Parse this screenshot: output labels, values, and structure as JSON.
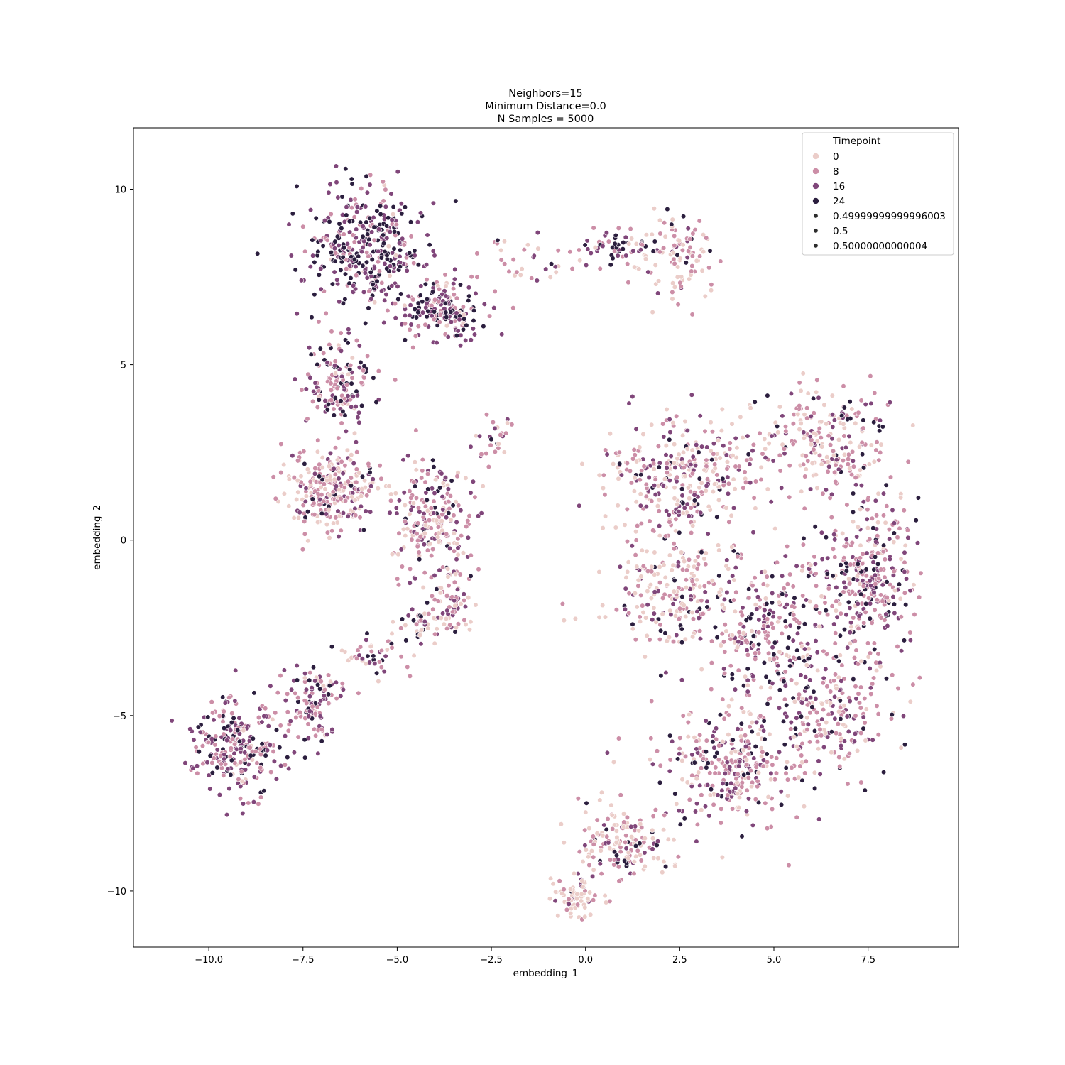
{
  "chart_data": {
    "type": "scatter",
    "title_lines": [
      "Neighbors=15",
      "Minimum Distance=0.0",
      "N Samples = 5000"
    ],
    "xlabel": "embedding_1",
    "ylabel": "embedding_2",
    "xlim": [
      -12,
      9.9
    ],
    "ylim": [
      -11.6,
      11.75
    ],
    "xticks": [
      -10,
      -7.5,
      -5,
      -2.5,
      0,
      2.5,
      5,
      7.5
    ],
    "xtick_labels": [
      "−10.0",
      "−7.5",
      "−5.0",
      "−2.5",
      "0.0",
      "2.5",
      "5.0",
      "7.5"
    ],
    "yticks": [
      10,
      5,
      0,
      -5,
      -10
    ],
    "ytick_labels": [
      "10",
      "5",
      "0",
      "−5",
      "−10"
    ],
    "grid": false,
    "legend": {
      "placement": "top-right",
      "title": "Timepoint",
      "hue_entries": [
        {
          "label": "0",
          "color": "#ebcdc9"
        },
        {
          "label": "8",
          "color": "#cc8ea7"
        },
        {
          "label": "16",
          "color": "#80467a"
        },
        {
          "label": "24",
          "color": "#2b1e3e"
        }
      ],
      "size_entries": [
        {
          "label": "0.49999999999996003",
          "color": "#2d2d2d"
        },
        {
          "label": "0.5",
          "color": "#2d2d2d"
        },
        {
          "label": "0.50000000000004",
          "color": "#2d2d2d"
        }
      ]
    },
    "series": [
      {
        "name": "0",
        "color": "#ebcdc9"
      },
      {
        "name": "8",
        "color": "#cc8ea7"
      },
      {
        "name": "16",
        "color": "#80467a"
      },
      {
        "name": "24",
        "color": "#2b1e3e"
      }
    ],
    "clusters": [
      {
        "center": [
          -5.8,
          8.4
        ],
        "spread": [
          1.4,
          1.5
        ],
        "weight": 380,
        "mix": [
          0.04,
          0.22,
          0.4,
          0.34
        ]
      },
      {
        "center": [
          -3.8,
          6.6
        ],
        "spread": [
          0.9,
          0.8
        ],
        "weight": 170,
        "mix": [
          0.05,
          0.25,
          0.4,
          0.3
        ]
      },
      {
        "center": [
          -6.6,
          4.5
        ],
        "spread": [
          0.8,
          1.4
        ],
        "weight": 150,
        "mix": [
          0.1,
          0.32,
          0.38,
          0.2
        ]
      },
      {
        "center": [
          -6.8,
          1.4
        ],
        "spread": [
          1.0,
          0.9
        ],
        "weight": 260,
        "mix": [
          0.34,
          0.4,
          0.2,
          0.06
        ]
      },
      {
        "center": [
          -4.0,
          0.6
        ],
        "spread": [
          0.9,
          1.4
        ],
        "weight": 230,
        "mix": [
          0.22,
          0.4,
          0.28,
          0.1
        ]
      },
      {
        "center": [
          -3.6,
          -1.8
        ],
        "spread": [
          0.5,
          0.8
        ],
        "weight": 60,
        "mix": [
          0.25,
          0.4,
          0.25,
          0.1
        ]
      },
      {
        "center": [
          -4.4,
          -2.4
        ],
        "spread": [
          0.7,
          0.4
        ],
        "weight": 40,
        "mix": [
          0.3,
          0.4,
          0.2,
          0.1
        ]
      },
      {
        "center": [
          -2.5,
          3.0
        ],
        "spread": [
          0.6,
          0.5
        ],
        "weight": 25,
        "mix": [
          0.3,
          0.4,
          0.2,
          0.1
        ]
      },
      {
        "center": [
          -1.5,
          7.9
        ],
        "spread": [
          0.9,
          0.6
        ],
        "weight": 35,
        "mix": [
          0.3,
          0.4,
          0.2,
          0.1
        ]
      },
      {
        "center": [
          0.8,
          8.4
        ],
        "spread": [
          0.7,
          0.5
        ],
        "weight": 50,
        "mix": [
          0.1,
          0.2,
          0.35,
          0.35
        ]
      },
      {
        "center": [
          2.4,
          8.0
        ],
        "spread": [
          0.9,
          1.0
        ],
        "weight": 110,
        "mix": [
          0.45,
          0.35,
          0.13,
          0.07
        ]
      },
      {
        "center": [
          -9.3,
          -5.9
        ],
        "spread": [
          1.1,
          1.2
        ],
        "weight": 250,
        "mix": [
          0.06,
          0.36,
          0.38,
          0.2
        ]
      },
      {
        "center": [
          -7.2,
          -4.7
        ],
        "spread": [
          0.7,
          0.9
        ],
        "weight": 110,
        "mix": [
          0.1,
          0.35,
          0.38,
          0.17
        ]
      },
      {
        "center": [
          -5.6,
          -3.4
        ],
        "spread": [
          0.7,
          0.5
        ],
        "weight": 40,
        "mix": [
          0.25,
          0.35,
          0.28,
          0.12
        ]
      },
      {
        "center": [
          2.5,
          1.8
        ],
        "spread": [
          1.8,
          1.3
        ],
        "weight": 320,
        "mix": [
          0.4,
          0.32,
          0.2,
          0.08
        ]
      },
      {
        "center": [
          6.3,
          2.8
        ],
        "spread": [
          1.6,
          1.3
        ],
        "weight": 230,
        "mix": [
          0.4,
          0.35,
          0.18,
          0.07
        ]
      },
      {
        "center": [
          7.5,
          -1.0
        ],
        "spread": [
          1.1,
          2.0
        ],
        "weight": 330,
        "mix": [
          0.15,
          0.4,
          0.3,
          0.15
        ]
      },
      {
        "center": [
          5.0,
          -2.6
        ],
        "spread": [
          1.5,
          1.8
        ],
        "weight": 320,
        "mix": [
          0.15,
          0.35,
          0.32,
          0.18
        ]
      },
      {
        "center": [
          2.2,
          -1.4
        ],
        "spread": [
          1.4,
          1.4
        ],
        "weight": 200,
        "mix": [
          0.42,
          0.3,
          0.18,
          0.1
        ]
      },
      {
        "center": [
          3.8,
          -6.4
        ],
        "spread": [
          1.6,
          1.5
        ],
        "weight": 300,
        "mix": [
          0.22,
          0.33,
          0.3,
          0.15
        ]
      },
      {
        "center": [
          6.6,
          -5.0
        ],
        "spread": [
          1.2,
          1.4
        ],
        "weight": 180,
        "mix": [
          0.2,
          0.35,
          0.3,
          0.15
        ]
      },
      {
        "center": [
          1.1,
          -8.6
        ],
        "spread": [
          1.2,
          0.9
        ],
        "weight": 150,
        "mix": [
          0.45,
          0.3,
          0.15,
          0.1
        ]
      },
      {
        "center": [
          -0.2,
          -10.2
        ],
        "spread": [
          0.5,
          0.5
        ],
        "weight": 70,
        "mix": [
          0.6,
          0.25,
          0.1,
          0.05
        ]
      }
    ]
  }
}
